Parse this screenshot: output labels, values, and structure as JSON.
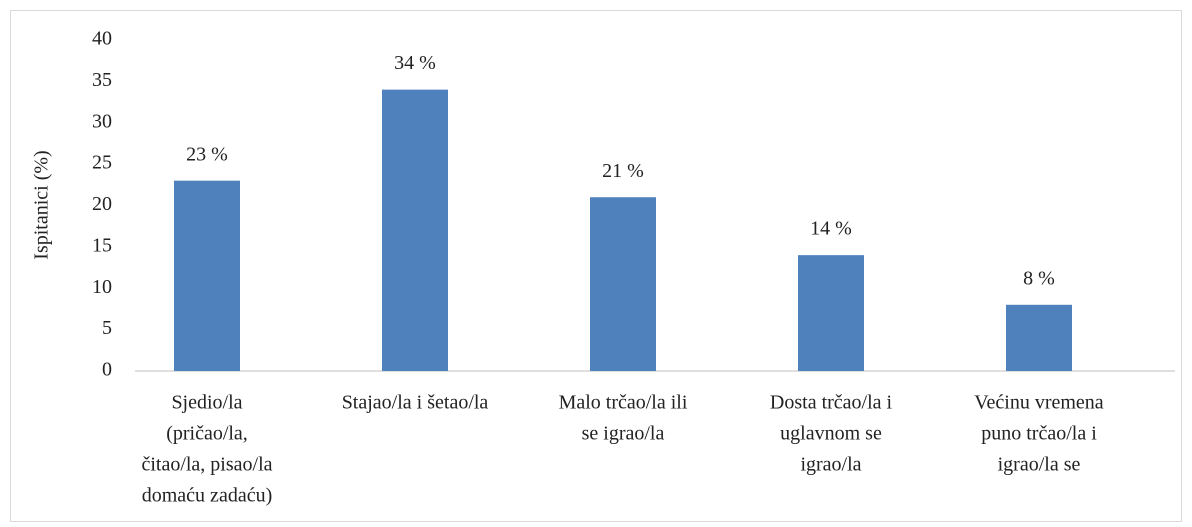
{
  "chart_data": {
    "type": "bar",
    "y_label": "Ispitanici (%)",
    "categories": [
      [
        "Sjedio/la",
        "(pričao/la,",
        "čitao/la, pisao/la",
        "domaću zadaću)"
      ],
      [
        "Stajao/la i šetao/la"
      ],
      [
        "Malo trčao/la ili",
        "se igrao/la"
      ],
      [
        "Dosta trčao/la i",
        "uglavnom se",
        "igrao/la"
      ],
      [
        "Većinu vremena",
        "puno trčao/la i",
        "igrao/la se"
      ]
    ],
    "values": [
      23,
      34,
      21,
      14,
      8
    ],
    "value_labels": [
      "23 %",
      "34 %",
      "21 %",
      "14 %",
      "8 %"
    ],
    "color": "#4f81bd",
    "ylim": [
      0,
      40
    ],
    "yticks": [
      0,
      5,
      10,
      15,
      20,
      25,
      30,
      35,
      40
    ],
    "grid": false
  }
}
